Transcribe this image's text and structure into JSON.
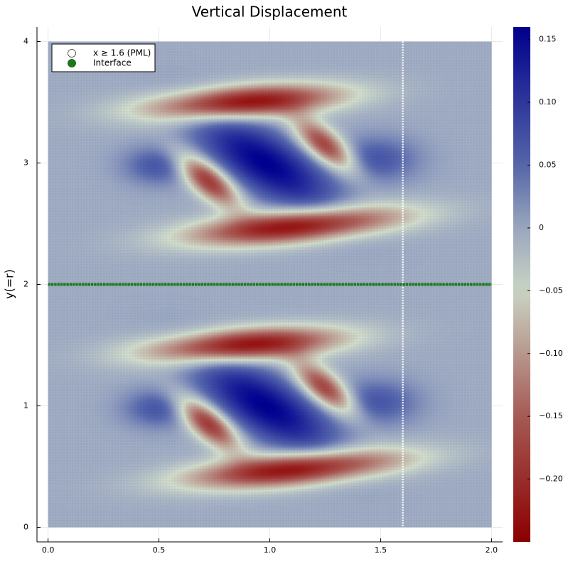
{
  "chart_data": {
    "type": "heatmap",
    "title": "Vertical Displacement",
    "xlabel": "",
    "ylabel": "y(=r)",
    "xlim": [
      -0.05,
      2.05
    ],
    "ylim": [
      -0.12,
      4.12
    ],
    "x_ticks": [
      {
        "value": 0.0,
        "label": "0.0"
      },
      {
        "value": 0.5,
        "label": "0.5"
      },
      {
        "value": 1.0,
        "label": "1.0"
      },
      {
        "value": 1.5,
        "label": "1.5"
      },
      {
        "value": 2.0,
        "label": "2.0"
      }
    ],
    "y_ticks": [
      {
        "value": 0,
        "label": "0"
      },
      {
        "value": 1,
        "label": "1"
      },
      {
        "value": 2,
        "label": "2"
      },
      {
        "value": 3,
        "label": "3"
      },
      {
        "value": 4,
        "label": "4"
      }
    ],
    "grid": true,
    "domain": {
      "x": [
        0,
        2
      ],
      "y": [
        0,
        4
      ]
    },
    "interface_line": {
      "y": 2.0,
      "color": "#1a7a1a"
    },
    "pml_line": {
      "x": 1.6,
      "color": "#ffffff"
    },
    "colorbar": {
      "range": [
        -0.25,
        0.16
      ],
      "ticks": [
        {
          "value": 0.15,
          "label": "0.15"
        },
        {
          "value": 0.1,
          "label": "0.10"
        },
        {
          "value": 0.05,
          "label": "0.05"
        },
        {
          "value": 0.0,
          "label": "0"
        },
        {
          "value": -0.05,
          "label": "−0.05"
        },
        {
          "value": -0.1,
          "label": "−0.10"
        },
        {
          "value": -0.15,
          "label": "−0.15"
        },
        {
          "value": -0.2,
          "label": "−0.20"
        }
      ],
      "stops": [
        {
          "value": -0.25,
          "color": "#8b0000"
        },
        {
          "value": -0.15,
          "color": "#a55a55"
        },
        {
          "value": -0.05,
          "color": "#c9d4c4"
        },
        {
          "value": 0.0,
          "color": "#9aa6bd"
        },
        {
          "value": 0.05,
          "color": "#5565a8"
        },
        {
          "value": 0.16,
          "color": "#00008b"
        }
      ]
    },
    "field_lobes": [
      {
        "cx": 0.88,
        "cy": 3.5,
        "sx": 0.3,
        "sy": 0.09,
        "rot_deg": 8,
        "amp": -0.24
      },
      {
        "cx": 1.12,
        "cy": 2.48,
        "sx": 0.33,
        "sy": 0.09,
        "rot_deg": 10,
        "amp": -0.24
      },
      {
        "cx": 0.98,
        "cy": 3.0,
        "sx": 0.13,
        "sy": 0.32,
        "rot_deg": 35,
        "amp": 0.16
      },
      {
        "cx": 0.72,
        "cy": 2.86,
        "sx": 0.06,
        "sy": 0.17,
        "rot_deg": 28,
        "amp": -0.2
      },
      {
        "cx": 1.25,
        "cy": 3.14,
        "sx": 0.06,
        "sy": 0.17,
        "rot_deg": 28,
        "amp": -0.19
      },
      {
        "cx": 0.5,
        "cy": 2.98,
        "sx": 0.11,
        "sy": 0.11,
        "rot_deg": 0,
        "amp": 0.07
      },
      {
        "cx": 1.48,
        "cy": 3.03,
        "sx": 0.13,
        "sy": 0.13,
        "rot_deg": 0,
        "amp": 0.07
      },
      {
        "cx": 0.88,
        "cy": 1.5,
        "sx": 0.3,
        "sy": 0.09,
        "rot_deg": 8,
        "amp": -0.24
      },
      {
        "cx": 1.12,
        "cy": 0.48,
        "sx": 0.33,
        "sy": 0.09,
        "rot_deg": 10,
        "amp": -0.24
      },
      {
        "cx": 0.98,
        "cy": 1.0,
        "sx": 0.13,
        "sy": 0.32,
        "rot_deg": 35,
        "amp": 0.16
      },
      {
        "cx": 0.72,
        "cy": 0.86,
        "sx": 0.06,
        "sy": 0.17,
        "rot_deg": 28,
        "amp": -0.2
      },
      {
        "cx": 1.25,
        "cy": 1.14,
        "sx": 0.06,
        "sy": 0.17,
        "rot_deg": 28,
        "amp": -0.19
      },
      {
        "cx": 0.5,
        "cy": 0.98,
        "sx": 0.11,
        "sy": 0.11,
        "rot_deg": 0,
        "amp": 0.07
      },
      {
        "cx": 1.48,
        "cy": 1.03,
        "sx": 0.13,
        "sy": 0.13,
        "rot_deg": 0,
        "amp": 0.07
      }
    ],
    "legend": {
      "placement": "top-left",
      "entries": [
        {
          "label": "x ≥ 1.6 (PML)",
          "marker": "hollow-circle",
          "color": "#ffffff"
        },
        {
          "label": "Interface",
          "marker": "filled-circle",
          "color": "#1a7a1a"
        }
      ]
    }
  }
}
